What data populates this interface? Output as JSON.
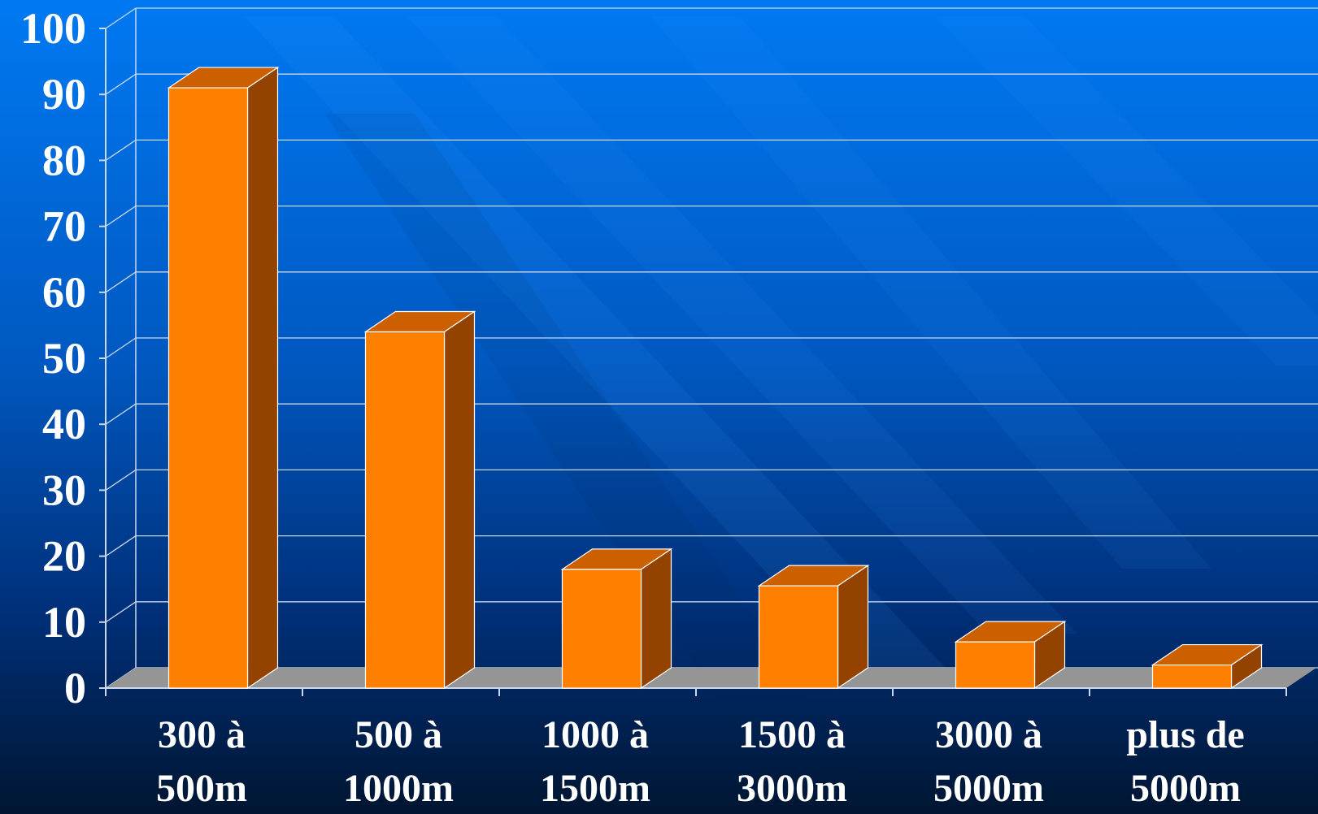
{
  "chart_data": {
    "type": "bar",
    "categories": [
      [
        "300 à",
        "500m"
      ],
      [
        "500 à",
        "1000m"
      ],
      [
        "1000 à",
        "1500m"
      ],
      [
        "1500 à",
        "3000m"
      ],
      [
        "3000 à",
        "5000m"
      ],
      [
        "plus de",
        "5000m"
      ]
    ],
    "values": [
      91,
      54,
      18,
      15.5,
      7,
      3.5
    ],
    "title": "",
    "xlabel": "",
    "ylabel": "",
    "ylim": [
      0,
      100
    ],
    "yticks": [
      "0",
      "10",
      "20",
      "30",
      "40",
      "50",
      "60",
      "70",
      "80",
      "90",
      "100"
    ],
    "grid": true,
    "legend": "none",
    "style": "3d-column",
    "colors": {
      "bar_front": "#FF7F00",
      "bar_top": "#CC5F00",
      "bar_side": "#944200",
      "floor": "#959595",
      "grid": "#C8D8F0",
      "text": "#FFFFFF",
      "background_top": "#0077F0",
      "background_bottom": "#001633"
    }
  }
}
